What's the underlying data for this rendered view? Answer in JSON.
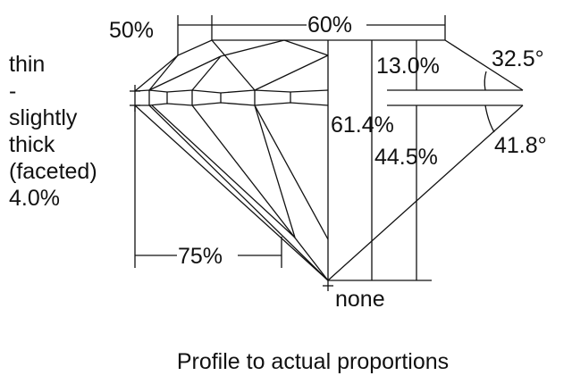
{
  "girdle_labels": [
    "thin",
    "-",
    "slightly",
    "thick",
    "(faceted)",
    "4.0%"
  ],
  "measurements": {
    "star_length": "50%",
    "table": "60%",
    "crown_height": "13.0%",
    "crown_angle": "32.5°",
    "total_depth": "61.4%",
    "pavilion_depth": "44.5%",
    "pavilion_angle": "41.8°",
    "lower_half_length": "75%",
    "culet": "none"
  },
  "caption": "Profile to actual proportions"
}
